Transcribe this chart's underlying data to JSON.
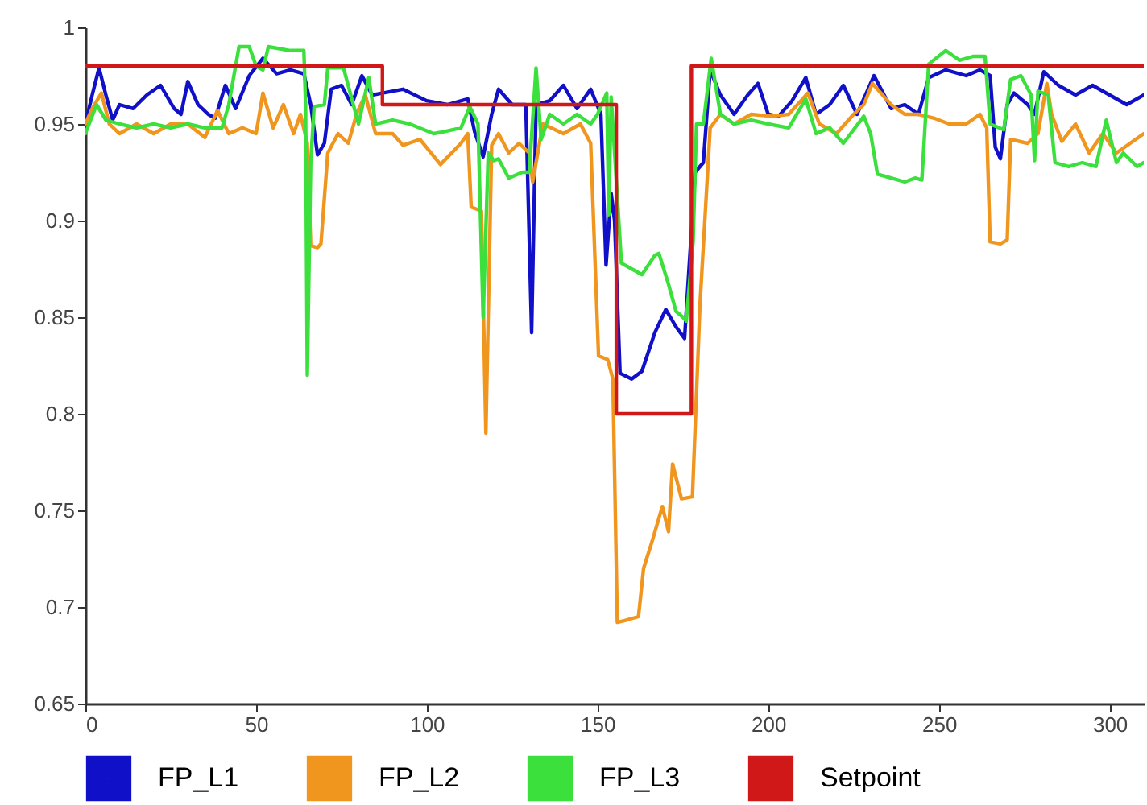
{
  "chart_data": {
    "type": "line",
    "xlim": [
      0,
      310
    ],
    "ylim": [
      0.65,
      1
    ],
    "xticks": [
      0,
      50,
      100,
      150,
      200,
      250,
      300
    ],
    "yticks": [
      0.65,
      0.7,
      0.75,
      0.8,
      0.85,
      0.9,
      0.95,
      1
    ],
    "grid": false,
    "legend": "bottom",
    "line_style": "solid",
    "series": [
      {
        "name": "FP_L1",
        "color": "#1010c8",
        "x": [
          0,
          2,
          4,
          6,
          8,
          10,
          14,
          18,
          22,
          26,
          28,
          30,
          33,
          36,
          38,
          41,
          44,
          48,
          52,
          56,
          60,
          64,
          66,
          68,
          70,
          72,
          75,
          78,
          81,
          84,
          87,
          93,
          100,
          106,
          112,
          114,
          116.5,
          119,
          121,
          125,
          129,
          130.7,
          132,
          136,
          140,
          144,
          148,
          151,
          152.5,
          154,
          155,
          156.6,
          160,
          163,
          166.8,
          170,
          173,
          175.5,
          178.6,
          181,
          183,
          186,
          190,
          194,
          197,
          200,
          203,
          207,
          211,
          214,
          218,
          222,
          226,
          231,
          236,
          240,
          244,
          247,
          252,
          258,
          262,
          265,
          266.5,
          268,
          270,
          272,
          276,
          278,
          280.7,
          285,
          290,
          295,
          300,
          305,
          310
        ],
        "values": [
          0.95,
          0.965,
          0.979,
          0.965,
          0.952,
          0.96,
          0.958,
          0.965,
          0.97,
          0.958,
          0.955,
          0.972,
          0.96,
          0.955,
          0.953,
          0.97,
          0.958,
          0.975,
          0.984,
          0.976,
          0.978,
          0.976,
          0.96,
          0.934,
          0.94,
          0.968,
          0.97,
          0.96,
          0.975,
          0.965,
          0.966,
          0.968,
          0.962,
          0.96,
          0.963,
          0.946,
          0.933,
          0.955,
          0.968,
          0.96,
          0.96,
          0.842,
          0.96,
          0.962,
          0.97,
          0.958,
          0.968,
          0.955,
          0.877,
          0.914,
          0.9,
          0.821,
          0.818,
          0.822,
          0.842,
          0.854,
          0.845,
          0.839,
          0.925,
          0.93,
          0.978,
          0.965,
          0.955,
          0.965,
          0.971,
          0.955,
          0.954,
          0.962,
          0.974,
          0.955,
          0.96,
          0.97,
          0.955,
          0.975,
          0.958,
          0.96,
          0.955,
          0.974,
          0.978,
          0.975,
          0.978,
          0.975,
          0.938,
          0.932,
          0.96,
          0.966,
          0.96,
          0.955,
          0.977,
          0.97,
          0.965,
          0.97,
          0.965,
          0.96,
          0.965
        ]
      },
      {
        "name": "FP_L2",
        "color": "#f0961e",
        "x": [
          0,
          2,
          4.7,
          7,
          10,
          15,
          20,
          25,
          30,
          35,
          38.7,
          42,
          46,
          50,
          52,
          55,
          58,
          61,
          63,
          65,
          66,
          68,
          69,
          71,
          74,
          77,
          79.6,
          82,
          85,
          90,
          93,
          98,
          104,
          110,
          112,
          113,
          116,
          117.3,
          119,
          121,
          124,
          127,
          130,
          131,
          134,
          140,
          145,
          148,
          150.3,
          153,
          154.5,
          155.8,
          158,
          162,
          163.5,
          166,
          169,
          170.8,
          172,
          174.6,
          177.8,
          180,
          183,
          186,
          190,
          195,
          201,
          206,
          211.6,
          215,
          220,
          225,
          228,
          230.5,
          236,
          240,
          244,
          248.6,
          253,
          258,
          262,
          264,
          265,
          268,
          270,
          271,
          276,
          279,
          281.6,
          283,
          286,
          290,
          294,
          298,
          302,
          306,
          310
        ],
        "values": [
          0.95,
          0.958,
          0.966,
          0.95,
          0.945,
          0.95,
          0.945,
          0.95,
          0.95,
          0.943,
          0.957,
          0.945,
          0.948,
          0.945,
          0.966,
          0.948,
          0.96,
          0.945,
          0.955,
          0.94,
          0.887,
          0.886,
          0.888,
          0.935,
          0.945,
          0.94,
          0.956,
          0.965,
          0.945,
          0.945,
          0.939,
          0.942,
          0.929,
          0.94,
          0.945,
          0.907,
          0.905,
          0.79,
          0.939,
          0.945,
          0.935,
          0.94,
          0.935,
          0.92,
          0.95,
          0.945,
          0.95,
          0.94,
          0.83,
          0.828,
          0.818,
          0.692,
          0.693,
          0.695,
          0.72,
          0.734,
          0.752,
          0.739,
          0.774,
          0.756,
          0.757,
          0.856,
          0.948,
          0.955,
          0.95,
          0.955,
          0.954,
          0.955,
          0.966,
          0.95,
          0.945,
          0.955,
          0.96,
          0.971,
          0.96,
          0.955,
          0.955,
          0.953,
          0.95,
          0.95,
          0.955,
          0.948,
          0.889,
          0.888,
          0.89,
          0.942,
          0.94,
          0.945,
          0.971,
          0.955,
          0.941,
          0.95,
          0.935,
          0.945,
          0.935,
          0.94,
          0.945
        ]
      },
      {
        "name": "FP_L3",
        "color": "#3ce03c",
        "x": [
          0,
          3.3,
          6,
          10,
          15,
          20,
          25,
          30,
          35,
          40,
          42,
          45,
          48,
          50,
          52,
          53.6,
          60,
          64,
          64.5,
          65,
          66,
          67,
          70,
          71,
          75.6,
          80,
          83,
          85,
          90,
          95,
          102,
          105,
          110,
          112.6,
          115,
          116.5,
          118,
          119.6,
          121,
          124,
          128,
          130,
          132,
          133.5,
          136,
          140,
          144,
          148,
          150,
          152.7,
          153.3,
          154,
          157,
          160,
          163,
          166.8,
          168,
          170.8,
          173,
          175,
          176,
          178,
          179,
          181,
          183.3,
          186,
          190,
          195,
          200,
          206,
          211,
          214,
          218,
          222,
          228,
          230,
          232,
          236,
          240,
          243,
          245,
          247,
          252,
          256,
          260,
          263.5,
          265,
          269,
          271,
          274,
          277,
          278,
          279,
          282,
          284,
          288,
          292,
          296,
          299,
          302,
          304,
          308,
          310
        ],
        "values": [
          0.945,
          0.96,
          0.952,
          0.95,
          0.948,
          0.95,
          0.948,
          0.95,
          0.948,
          0.948,
          0.96,
          0.99,
          0.99,
          0.98,
          0.978,
          0.99,
          0.988,
          0.988,
          0.96,
          0.82,
          0.93,
          0.959,
          0.96,
          0.979,
          0.979,
          0.95,
          0.974,
          0.95,
          0.952,
          0.95,
          0.945,
          0.946,
          0.948,
          0.959,
          0.95,
          0.85,
          0.935,
          0.931,
          0.932,
          0.922,
          0.925,
          0.925,
          0.979,
          0.942,
          0.955,
          0.95,
          0.955,
          0.95,
          0.955,
          0.966,
          0.903,
          0.964,
          0.878,
          0.875,
          0.872,
          0.882,
          0.883,
          0.867,
          0.853,
          0.85,
          0.848,
          0.889,
          0.95,
          0.95,
          0.984,
          0.955,
          0.95,
          0.952,
          0.95,
          0.948,
          0.963,
          0.945,
          0.948,
          0.94,
          0.954,
          0.945,
          0.924,
          0.922,
          0.92,
          0.922,
          0.921,
          0.981,
          0.988,
          0.983,
          0.985,
          0.985,
          0.95,
          0.947,
          0.973,
          0.975,
          0.965,
          0.931,
          0.967,
          0.965,
          0.93,
          0.928,
          0.93,
          0.928,
          0.952,
          0.93,
          0.935,
          0.928,
          0.93
        ]
      },
      {
        "name": "Setpoint",
        "color": "#d01818",
        "x": [
          0,
          87,
          87,
          155.5,
          155.5,
          177.5,
          177.5,
          310
        ],
        "values": [
          0.98,
          0.98,
          0.96,
          0.96,
          0.8,
          0.8,
          0.98,
          0.98
        ]
      }
    ]
  }
}
